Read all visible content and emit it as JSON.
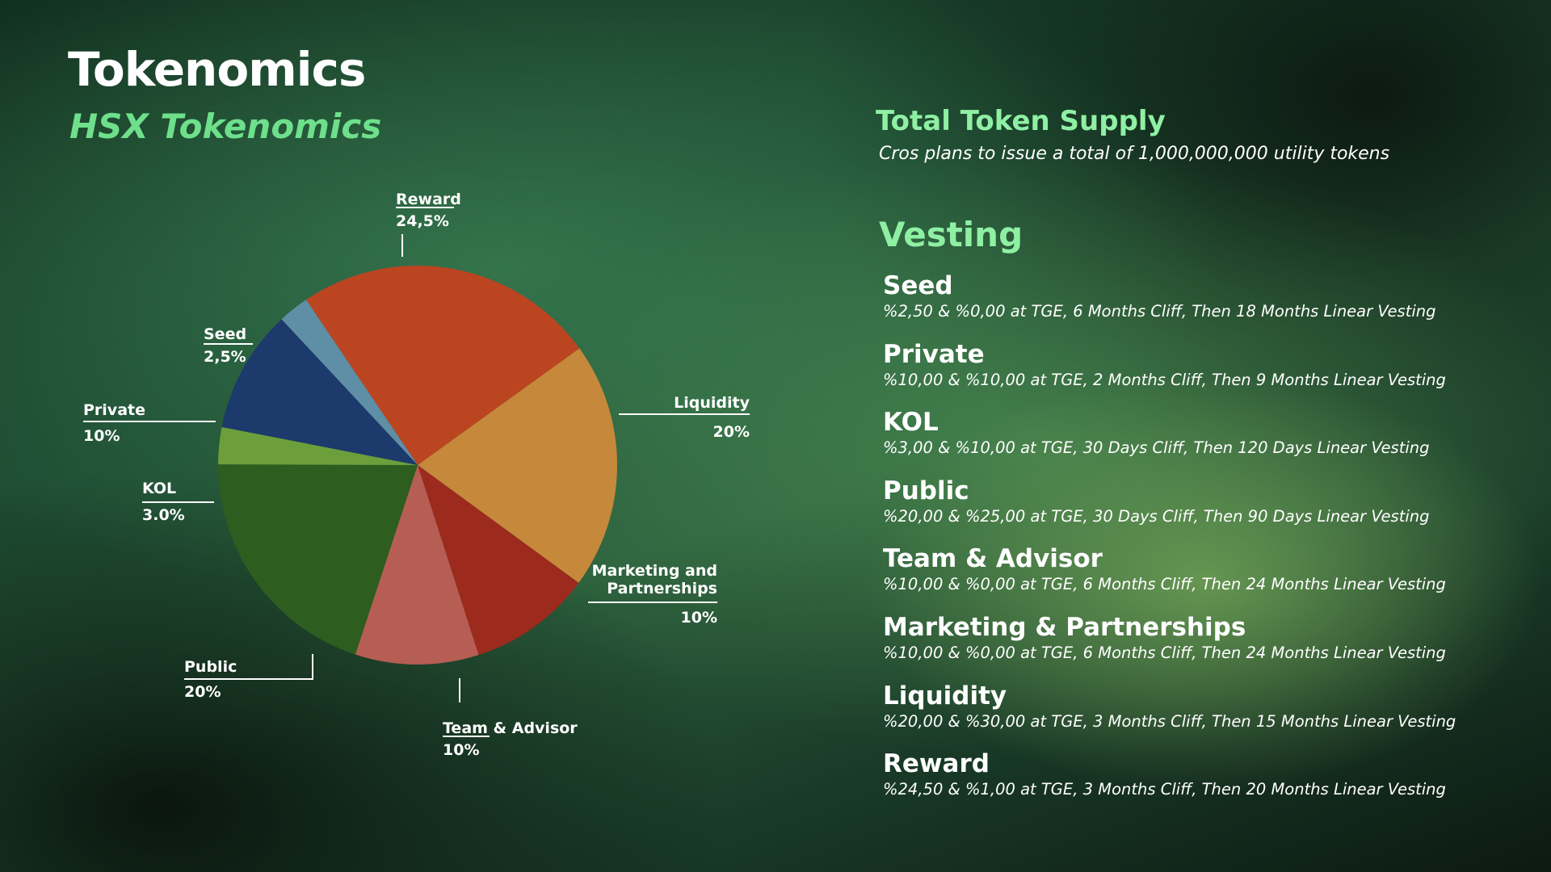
{
  "header": {
    "title": "Tokenomics",
    "subtitle": "HSX Tokenomics"
  },
  "supply": {
    "title": "Total Token Supply",
    "description": "Cros plans to issue a total of 1,000,000,000 utility tokens"
  },
  "vesting": {
    "title": "Vesting",
    "items": [
      {
        "name": "Seed",
        "desc": "%2,50 & %0,00 at TGE, 6 Months Cliff, Then 18 Months Linear Vesting"
      },
      {
        "name": "Private",
        "desc": "%10,00 & %10,00 at TGE, 2 Months Cliff, Then 9 Months Linear Vesting"
      },
      {
        "name": "KOL",
        "desc": "%3,00 & %10,00 at TGE, 30 Days Cliff, Then 120 Days Linear Vesting"
      },
      {
        "name": "Public",
        "desc": "%20,00 & %25,00 at TGE, 30 Days Cliff, Then 90 Days Linear Vesting"
      },
      {
        "name": "Team & Advisor",
        "desc": "%10,00 & %0,00 at TGE, 6 Months Cliff, Then 24 Months Linear Vesting"
      },
      {
        "name": "Marketing & Partnerships",
        "desc": "%10,00 & %0,00 at TGE, 6 Months Cliff, Then 24 Months Linear Vesting"
      },
      {
        "name": "Liquidity",
        "desc": "%20,00 & %30,00 at TGE, 3 Months Cliff, Then 15 Months Linear Vesting"
      },
      {
        "name": "Reward",
        "desc": " %24,50 & %1,00 at TGE, 3 Months Cliff, Then 20 Months Linear Vesting"
      }
    ]
  },
  "chart_data": {
    "type": "pie",
    "title": "HSX Tokenomics",
    "start_angle_deg": -124,
    "direction": "clockwise",
    "slices": [
      {
        "name": "Reward",
        "label_lines": [
          "Reward"
        ],
        "value_label": "24,5%",
        "value": 24.5,
        "color": "#bb4521"
      },
      {
        "name": "Liquidity",
        "label_lines": [
          "Liquidity"
        ],
        "value_label": "20%",
        "value": 20,
        "color": "#c6883a"
      },
      {
        "name": "Marketing and Partnerships",
        "label_lines": [
          "Marketing and",
          "Partnerships"
        ],
        "value_label": "10%",
        "value": 10,
        "color": "#9c2a1d"
      },
      {
        "name": "Team & Advisor",
        "label_lines": [
          "Team & Advisor"
        ],
        "value_label": "10%",
        "value": 10,
        "color": "#b75e54"
      },
      {
        "name": "Public",
        "label_lines": [
          "Public"
        ],
        "value_label": "20%",
        "value": 20,
        "color": "#2d5d1f"
      },
      {
        "name": "KOL",
        "label_lines": [
          "KOL"
        ],
        "value_label": "3.0%",
        "value": 3,
        "color": "#6c9f3c"
      },
      {
        "name": "Private",
        "label_lines": [
          "Private"
        ],
        "value_label": "10%",
        "value": 10,
        "color": "#1c3a6b"
      },
      {
        "name": "Seed",
        "label_lines": [
          "Seed"
        ],
        "value_label": "2,5%",
        "value": 2.5,
        "color": "#5f8ea7"
      }
    ]
  }
}
